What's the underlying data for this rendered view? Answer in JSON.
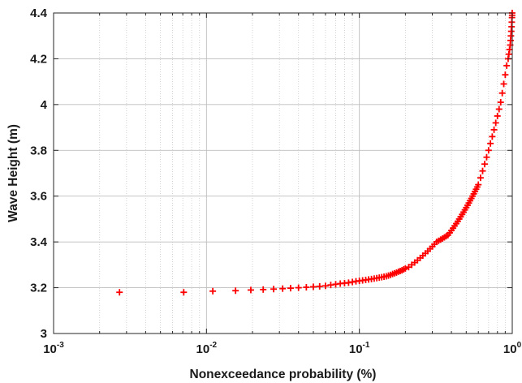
{
  "chart_data": {
    "type": "scatter",
    "title": "",
    "xlabel": "Nonexceedance probability (%)",
    "ylabel": "Wave Height (m)",
    "xscale": "log",
    "xlim": [
      0.001,
      1
    ],
    "ylim": [
      3,
      4.4
    ],
    "grid": true,
    "minor_grid": true,
    "x_tick_labels": [
      {
        "base": "10",
        "exp": "-3",
        "value": 0.001
      },
      {
        "base": "10",
        "exp": "-2",
        "value": 0.01
      },
      {
        "base": "10",
        "exp": "-1",
        "value": 0.1
      },
      {
        "base": "10",
        "exp": "0",
        "value": 1
      }
    ],
    "y_tick_labels": [
      "3",
      "3.2",
      "3.4",
      "3.6",
      "3.8",
      "4",
      "4.2",
      "4.4"
    ],
    "marker": "+",
    "marker_color": "#ff0000",
    "series": [
      {
        "x": [
          0.0027,
          0.0071,
          0.011,
          0.0155,
          0.0195,
          0.0235,
          0.0275,
          0.0315,
          0.0355,
          0.04,
          0.045,
          0.05,
          0.055,
          0.06,
          0.065,
          0.07,
          0.075,
          0.08,
          0.085,
          0.09,
          0.095,
          0.1,
          0.105,
          0.11,
          0.115,
          0.12,
          0.125,
          0.13,
          0.135,
          0.14,
          0.145,
          0.15,
          0.155,
          0.16,
          0.165,
          0.17,
          0.175,
          0.18,
          0.185,
          0.19,
          0.195,
          0.2,
          0.21,
          0.22,
          0.23,
          0.24,
          0.25,
          0.26,
          0.27,
          0.28,
          0.29,
          0.3,
          0.31,
          0.32,
          0.33,
          0.34,
          0.35,
          0.36,
          0.37,
          0.38,
          0.39,
          0.4,
          0.41,
          0.42,
          0.43,
          0.44,
          0.45,
          0.46,
          0.47,
          0.48,
          0.49,
          0.5,
          0.51,
          0.52,
          0.53,
          0.54,
          0.55,
          0.56,
          0.57,
          0.58,
          0.59,
          0.6,
          0.62,
          0.64,
          0.66,
          0.68,
          0.7,
          0.72,
          0.74,
          0.76,
          0.78,
          0.8,
          0.82,
          0.84,
          0.86,
          0.88,
          0.9,
          0.92,
          0.94,
          0.95,
          0.96,
          0.97,
          0.975,
          0.98,
          0.985,
          0.99,
          0.993,
          0.996,
          0.998,
          0.999
        ],
        "y": [
          3.18,
          3.18,
          3.185,
          3.187,
          3.19,
          3.192,
          3.194,
          3.196,
          3.198,
          3.2,
          3.202,
          3.204,
          3.206,
          3.208,
          3.212,
          3.215,
          3.218,
          3.22,
          3.222,
          3.225,
          3.228,
          3.23,
          3.232,
          3.234,
          3.236,
          3.238,
          3.24,
          3.242,
          3.244,
          3.246,
          3.248,
          3.25,
          3.253,
          3.256,
          3.26,
          3.263,
          3.266,
          3.27,
          3.273,
          3.276,
          3.28,
          3.284,
          3.29,
          3.3,
          3.31,
          3.32,
          3.33,
          3.34,
          3.35,
          3.36,
          3.37,
          3.38,
          3.39,
          3.4,
          3.405,
          3.41,
          3.415,
          3.42,
          3.425,
          3.43,
          3.44,
          3.45,
          3.46,
          3.47,
          3.48,
          3.49,
          3.5,
          3.51,
          3.52,
          3.53,
          3.54,
          3.55,
          3.56,
          3.57,
          3.58,
          3.59,
          3.6,
          3.61,
          3.62,
          3.63,
          3.64,
          3.65,
          3.68,
          3.71,
          3.74,
          3.77,
          3.8,
          3.83,
          3.86,
          3.89,
          3.92,
          3.95,
          3.98,
          4.01,
          4.05,
          4.09,
          4.13,
          4.17,
          4.2,
          4.22,
          4.24,
          4.26,
          4.28,
          4.3,
          4.32,
          4.34,
          4.36,
          4.38,
          4.39,
          4.4
        ]
      }
    ]
  }
}
